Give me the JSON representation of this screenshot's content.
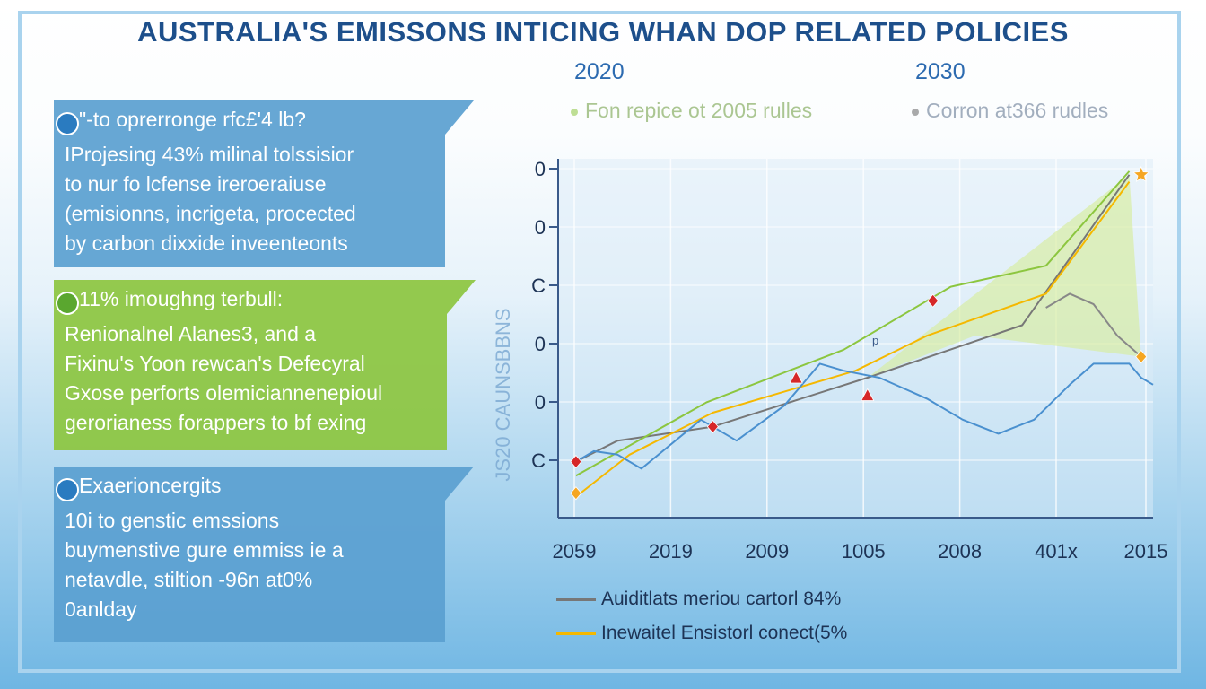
{
  "title": "AUSTRALIA'S EMISSONS INTICING WHAN DOP RELATED POLICIES",
  "years_top": [
    "2020",
    "2030"
  ],
  "legend_top": [
    {
      "label": "Fon repice ot 2005 rulles",
      "color": "#8cc63f"
    },
    {
      "label": "Corron at366 rudles",
      "color": "#666666"
    }
  ],
  "panels": [
    {
      "heading": "\"-to oprerronge rfc£'4 lb?",
      "lines": [
        "IProjesing 43% milinal tolssisior",
        "to nur fo lcfense ireroeraiuse",
        "(emisionns, incrigeta, procected",
        "by carbon dixxide inveenteonts"
      ],
      "bg": "#5a9fd0",
      "dot": "#2a7bc0"
    },
    {
      "heading": "11% imoughng terbull:",
      "lines": [
        "Renionalnel Alanes3, and a",
        "Fixinu's Yoon rewcan's Defecyral",
        "Gxose perforts olemiciannenepioul",
        "gerorianess forappers to bf exing"
      ],
      "bg": "#8cc63f",
      "dot": "#5aa72f"
    },
    {
      "heading": "Exaerioncergits",
      "lines": [
        "10i to genstic emssions",
        "buymenstive gure emmiss ie a",
        "netavdle, stiltion -96n at0%",
        "0anlday"
      ],
      "bg": "#5a9fd0",
      "dot": "#2a7bc0"
    }
  ],
  "chart_data": {
    "type": "line",
    "y_axis_title": "JS20 CAUNSBBNS",
    "y_tick_labels": [
      "0",
      "0",
      "C",
      "0",
      "0",
      "C"
    ],
    "x_tick_labels": [
      "2059",
      "2019",
      "2009",
      "1005",
      "2008",
      "401x",
      "2015"
    ],
    "x_mark_label": "p",
    "y_range": [
      0,
      100
    ],
    "x_range": [
      0,
      100
    ],
    "series": [
      {
        "name": "Auiditlats meriou cartorl 84%",
        "color": "#777777",
        "points": [
          [
            3,
            16
          ],
          [
            10,
            22
          ],
          [
            26,
            26
          ],
          [
            52,
            40
          ],
          [
            78,
            55
          ],
          [
            96,
            98
          ]
        ]
      },
      {
        "name": "",
        "color": "#8cc63f",
        "points": [
          [
            3,
            12
          ],
          [
            25,
            33
          ],
          [
            48,
            48
          ],
          [
            66,
            66
          ],
          [
            82,
            72
          ],
          [
            96,
            99
          ]
        ]
      },
      {
        "name": "Inewaitel Ensistorl conect(5%",
        "color": "#f5b800",
        "points": [
          [
            3,
            6
          ],
          [
            12,
            18
          ],
          [
            26,
            30
          ],
          [
            50,
            42
          ],
          [
            62,
            52
          ],
          [
            82,
            64
          ],
          [
            96,
            96
          ]
        ]
      },
      {
        "name": "",
        "color": "#4a90cf",
        "points": [
          [
            3,
            16
          ],
          [
            6,
            19
          ],
          [
            10,
            18
          ],
          [
            14,
            14
          ],
          [
            24,
            28
          ],
          [
            30,
            22
          ],
          [
            38,
            32
          ],
          [
            44,
            44
          ],
          [
            48,
            42
          ],
          [
            54,
            40
          ],
          [
            62,
            34
          ],
          [
            68,
            28
          ],
          [
            74,
            24
          ],
          [
            80,
            28
          ],
          [
            86,
            38
          ],
          [
            90,
            44
          ],
          [
            96,
            44
          ],
          [
            98,
            40
          ],
          [
            100,
            38
          ]
        ]
      },
      {
        "name": "",
        "color": "#888888",
        "points": [
          [
            82,
            60
          ],
          [
            86,
            64
          ],
          [
            90,
            61
          ],
          [
            94,
            52
          ],
          [
            98,
            46
          ]
        ]
      }
    ],
    "markers": [
      {
        "x": 3,
        "y": 16,
        "color": "#d62728",
        "shape": "diamond"
      },
      {
        "x": 26,
        "y": 26,
        "color": "#d62728",
        "shape": "diamond"
      },
      {
        "x": 40,
        "y": 40,
        "color": "#d62728",
        "shape": "triangle"
      },
      {
        "x": 52,
        "y": 35,
        "color": "#d62728",
        "shape": "triangle"
      },
      {
        "x": 63,
        "y": 62,
        "color": "#d62728",
        "shape": "diamond"
      },
      {
        "x": 3,
        "y": 7,
        "color": "#f5a623",
        "shape": "diamond"
      },
      {
        "x": 98,
        "y": 98,
        "color": "#f5a623",
        "shape": "star"
      },
      {
        "x": 98,
        "y": 46,
        "color": "#f5a623",
        "shape": "diamond"
      }
    ],
    "shaded_area": {
      "color": "#d7ec9e",
      "points": [
        [
          52,
          40
        ],
        [
          96,
          98
        ],
        [
          98,
          46
        ],
        [
          70,
          52
        ],
        [
          52,
          40
        ]
      ]
    },
    "grid": true,
    "legend_position": "bottom"
  }
}
